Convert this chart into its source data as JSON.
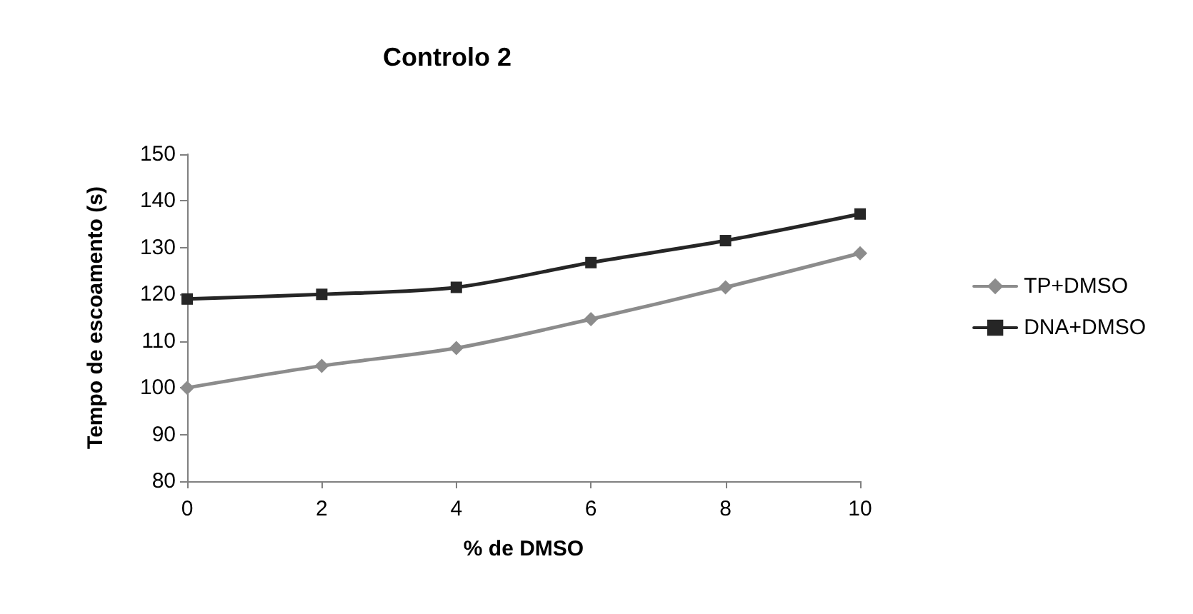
{
  "chart_data": {
    "type": "line",
    "title": "Controlo 2",
    "xlabel": "% de DMSO",
    "ylabel": "Tempo de escoamento (s)",
    "x": [
      0,
      2,
      4,
      6,
      8,
      10
    ],
    "series": [
      {
        "name": "TP+DMSO",
        "color": "#8c8c8c",
        "marker": "diamond",
        "values": [
          100,
          104.7,
          108.5,
          114.7,
          121.5,
          128.8
        ]
      },
      {
        "name": "DNA+DMSO",
        "color": "#262626",
        "marker": "square",
        "values": [
          119,
          120,
          121.5,
          126.8,
          131.5,
          137.2
        ]
      }
    ],
    "xlim": [
      0,
      10
    ],
    "xticks": [
      0,
      2,
      4,
      6,
      8,
      10
    ],
    "ylim": [
      80,
      150
    ],
    "yticks": [
      80,
      90,
      100,
      110,
      120,
      130,
      140,
      150
    ],
    "grid": false,
    "legend": "right",
    "line_style": "solid"
  }
}
